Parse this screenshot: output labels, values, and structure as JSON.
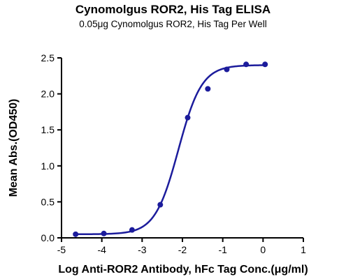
{
  "chart_data": {
    "type": "scatter",
    "title": "Cynomolgus ROR2, His Tag ELISA",
    "subtitle": "0.05μg Cynomolgus ROR2, His Tag Per Well",
    "xlabel": "Log Anti-ROR2 Antibody, hFc Tag Conc.(μg/ml)",
    "ylabel": "Mean Abs.(OD450)",
    "xlim": [
      -5,
      1
    ],
    "ylim": [
      0,
      2.5
    ],
    "xticks": [
      "-5",
      "-4",
      "-3",
      "-2",
      "-1",
      "0",
      "1"
    ],
    "yticks": [
      "0.0",
      "0.5",
      "1.0",
      "1.5",
      "2.0",
      "2.5"
    ],
    "grid": false,
    "legend": "none",
    "color": "#1c1c9c",
    "series": [
      {
        "points": [
          {
            "x": -4.65,
            "y": 0.05
          },
          {
            "x": -3.95,
            "y": 0.06
          },
          {
            "x": -3.25,
            "y": 0.11
          },
          {
            "x": -2.55,
            "y": 0.46
          },
          {
            "x": -1.87,
            "y": 1.67
          },
          {
            "x": -1.37,
            "y": 2.07
          },
          {
            "x": -0.9,
            "y": 2.34
          },
          {
            "x": -0.42,
            "y": 2.41
          },
          {
            "x": 0.05,
            "y": 2.41
          }
        ],
        "fit": {
          "bottom": 0.05,
          "top": 2.4,
          "logEC50": -2.1,
          "hillslope": 1.5
        }
      }
    ]
  }
}
